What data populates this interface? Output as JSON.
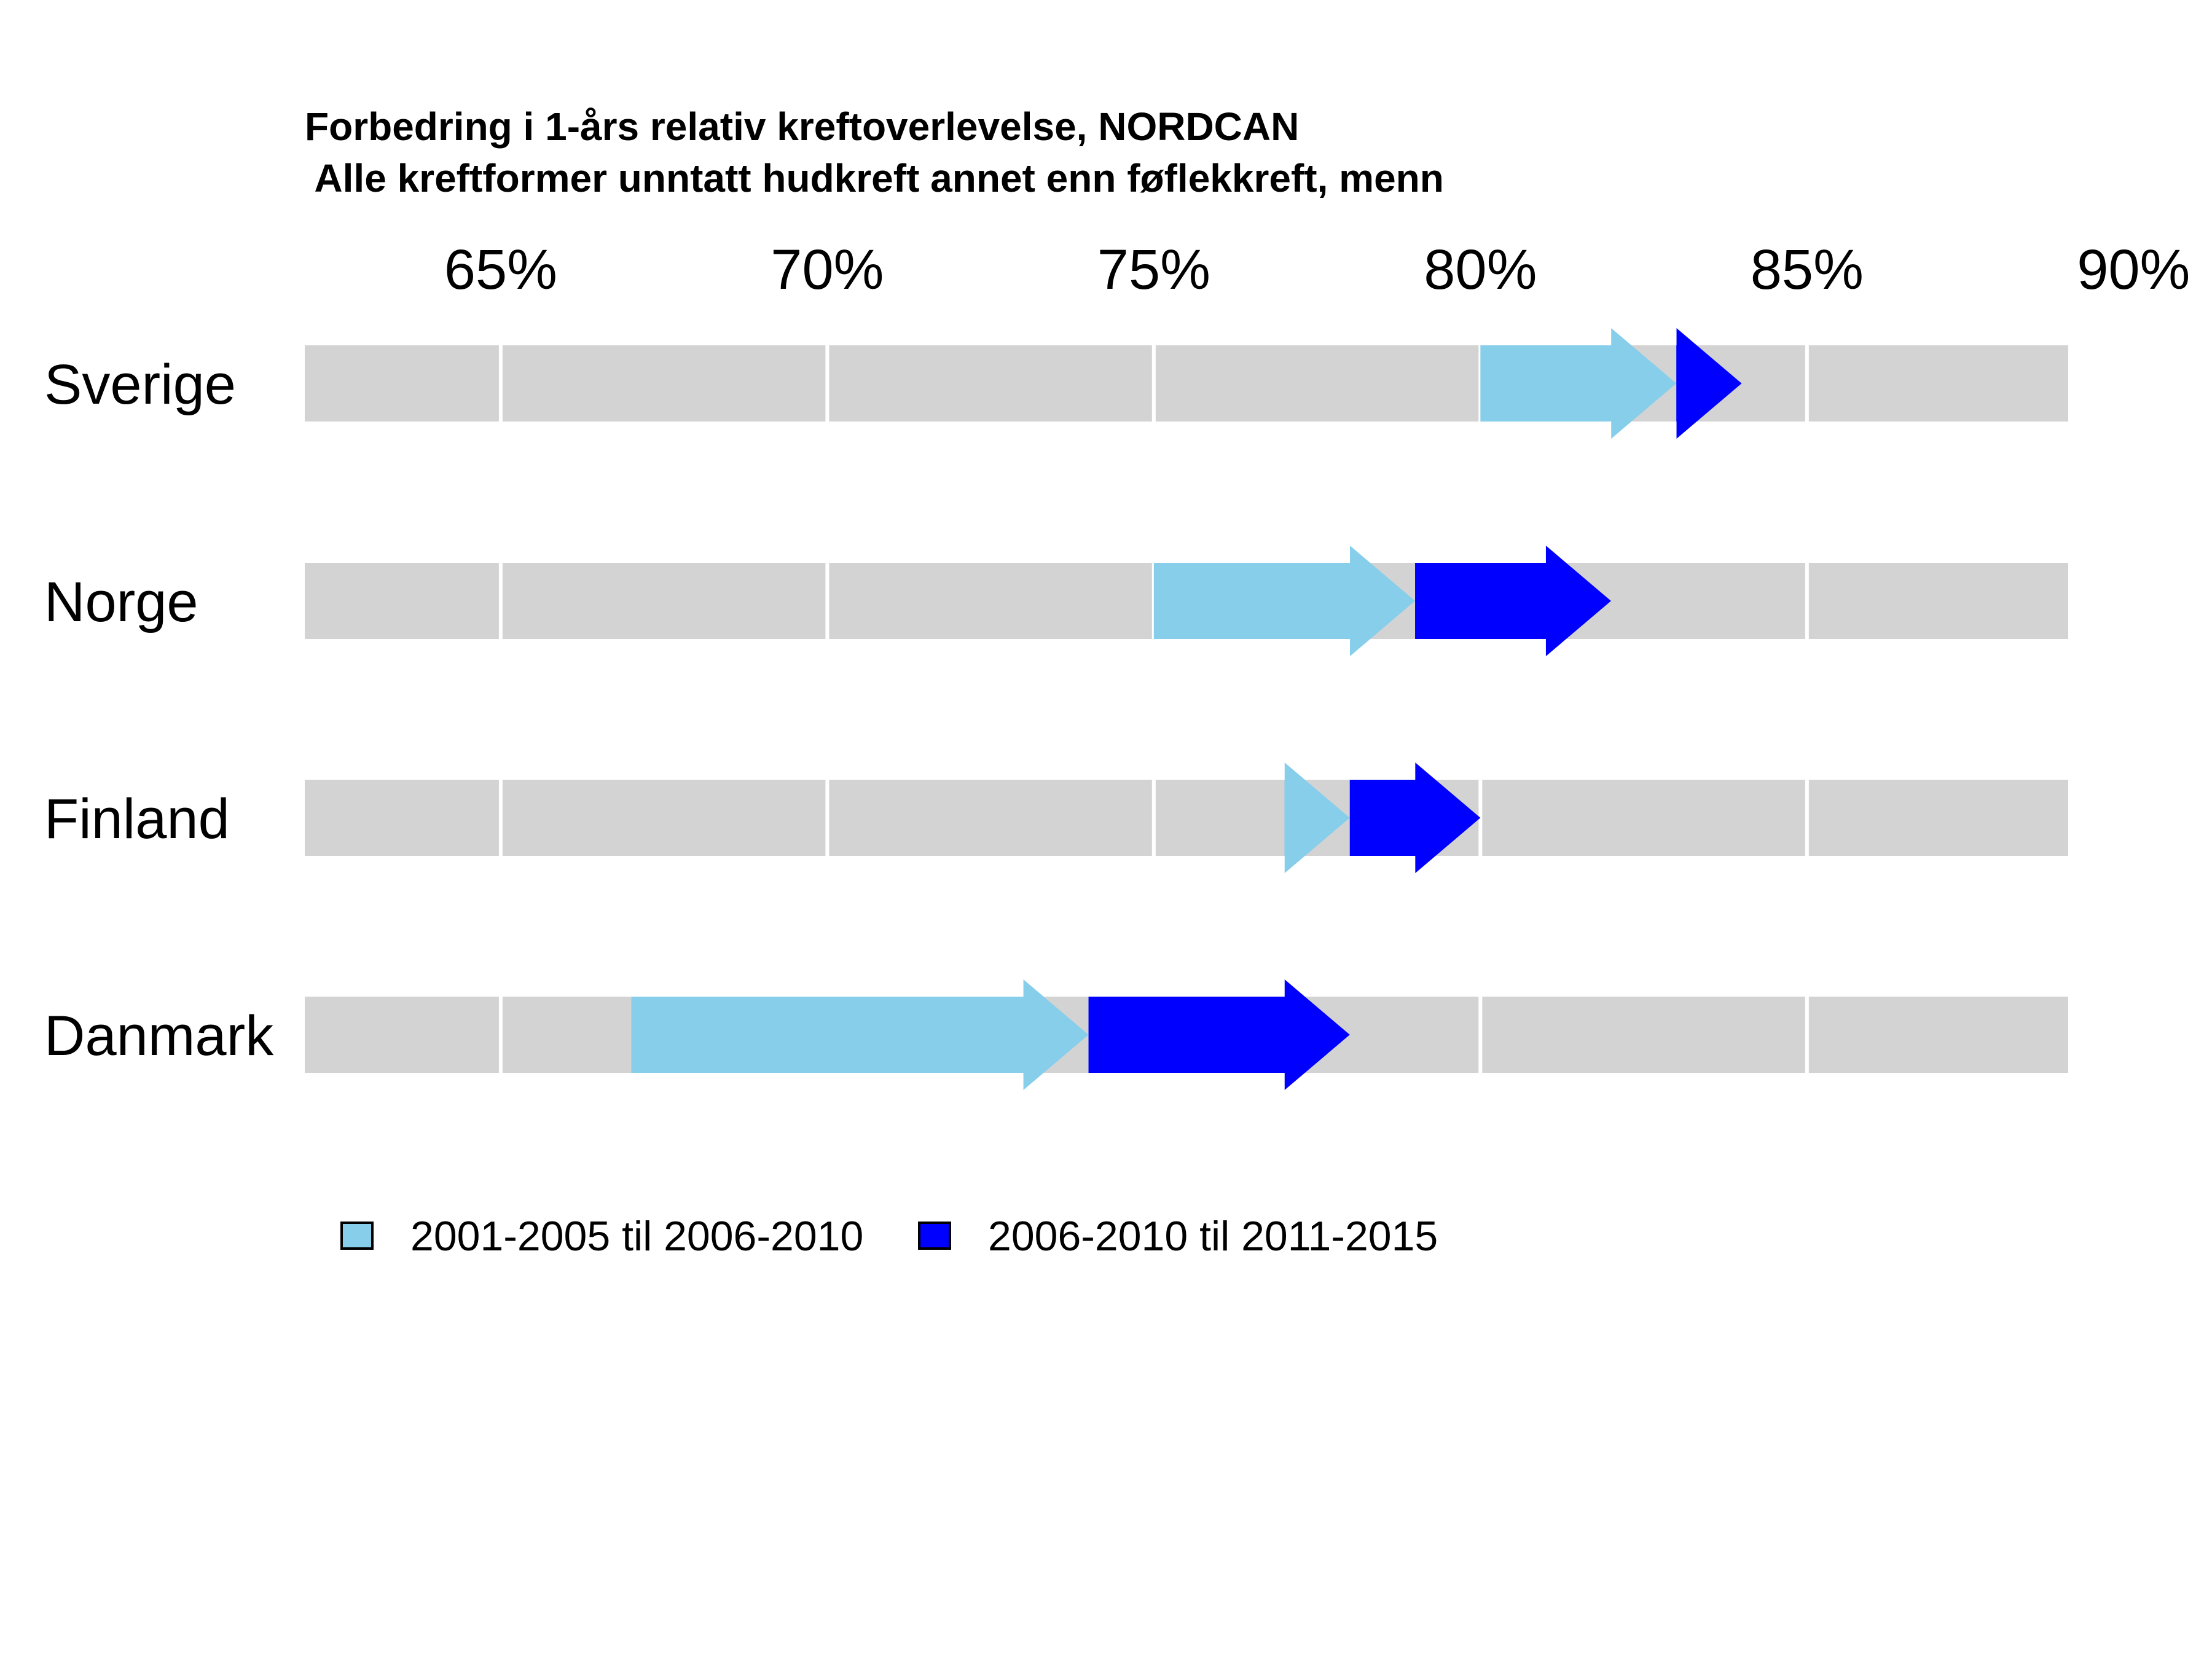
{
  "chart_data": {
    "type": "arrow-range",
    "title": "Forbedring i 1-års relativ kreftoverlevelse, NORDCAN",
    "subtitle": " Alle kreftformer unntatt hudkreft annet enn føflekkreft, menn",
    "xlim": [
      62,
      89
    ],
    "ticks": [
      65,
      70,
      75,
      80,
      85,
      90
    ],
    "tick_labels": [
      "65%",
      "70%",
      "75%",
      "80%",
      "85%",
      "90%"
    ],
    "grid": true,
    "legend_position": "bottom",
    "series": [
      {
        "name": "2001-2005 til 2006-2010",
        "color": "#87CEEB"
      },
      {
        "name": "2006-2010 til 2011-2015",
        "color": "#0000FF"
      }
    ],
    "categories": [
      "Sverige",
      "Norge",
      "Finland",
      "Danmark"
    ],
    "values": [
      {
        "country": "Sverige",
        "p1": 80.0,
        "p2": 83.0,
        "p3": 84.0
      },
      {
        "country": "Norge",
        "p1": 75.0,
        "p2": 79.0,
        "p3": 82.0
      },
      {
        "country": "Finland",
        "p1": 77.0,
        "p2": 78.0,
        "p3": 80.0
      },
      {
        "country": "Danmark",
        "p1": 67.0,
        "p2": 74.0,
        "p3": 78.0
      }
    ]
  }
}
